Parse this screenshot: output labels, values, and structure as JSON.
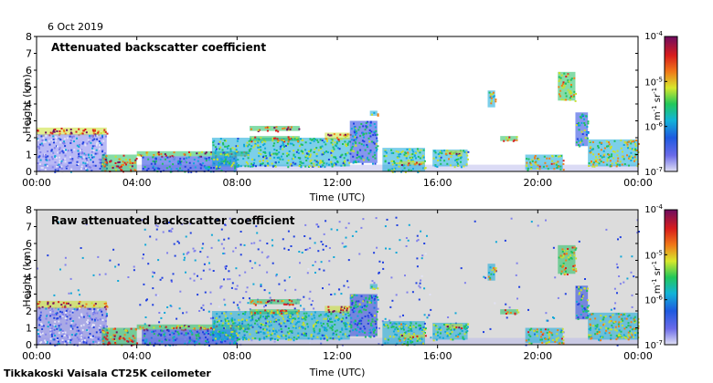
{
  "date": "6 Oct 2019",
  "footer": "Tikkakoski Vaisala CT25K ceilometer",
  "chart_data": [
    {
      "type": "heatmap",
      "title": "Attenuated backscatter coefficient",
      "xlabel": "Time (UTC)",
      "ylabel": "Height (km)",
      "xticks": [
        "00:00",
        "04:00",
        "08:00",
        "12:00",
        "16:00",
        "20:00",
        "00:00"
      ],
      "yticks": [
        "0",
        "1",
        "2",
        "3",
        "4",
        "5",
        "6",
        "7",
        "8"
      ],
      "xlim_hours": [
        0,
        24
      ],
      "ylim_km": [
        0,
        8
      ],
      "colorbar": {
        "scale": "log",
        "range": [
          1e-07,
          0.0001
        ],
        "unit_base": "m",
        "unit_base_exp": "-1",
        "unit_sr": " sr",
        "unit_sr_exp": "-1",
        "ticks": [
          {
            "base": "10",
            "exp": "-4"
          },
          {
            "base": "10",
            "exp": "-5"
          },
          {
            "base": "10",
            "exp": "-6"
          },
          {
            "base": "10",
            "exp": "-7"
          }
        ]
      }
    },
    {
      "type": "heatmap",
      "title": "Raw attenuated backscatter coefficient",
      "xlabel": "Time (UTC)",
      "ylabel": "Height (km)",
      "xticks": [
        "00:00",
        "04:00",
        "08:00",
        "12:00",
        "16:00",
        "20:00",
        "00:00"
      ],
      "yticks": [
        "0",
        "1",
        "2",
        "3",
        "4",
        "5",
        "6",
        "7",
        "8"
      ],
      "xlim_hours": [
        0,
        24
      ],
      "ylim_km": [
        0,
        8
      ],
      "colorbar": {
        "scale": "log",
        "range": [
          1e-07,
          0.0001
        ],
        "unit_base": "m",
        "unit_base_exp": "-1",
        "unit_sr": " sr",
        "unit_sr_exp": "-1",
        "ticks": [
          {
            "base": "10",
            "exp": "-4"
          },
          {
            "base": "10",
            "exp": "-5"
          },
          {
            "base": "10",
            "exp": "-6"
          },
          {
            "base": "10",
            "exp": "-7"
          }
        ]
      }
    }
  ]
}
